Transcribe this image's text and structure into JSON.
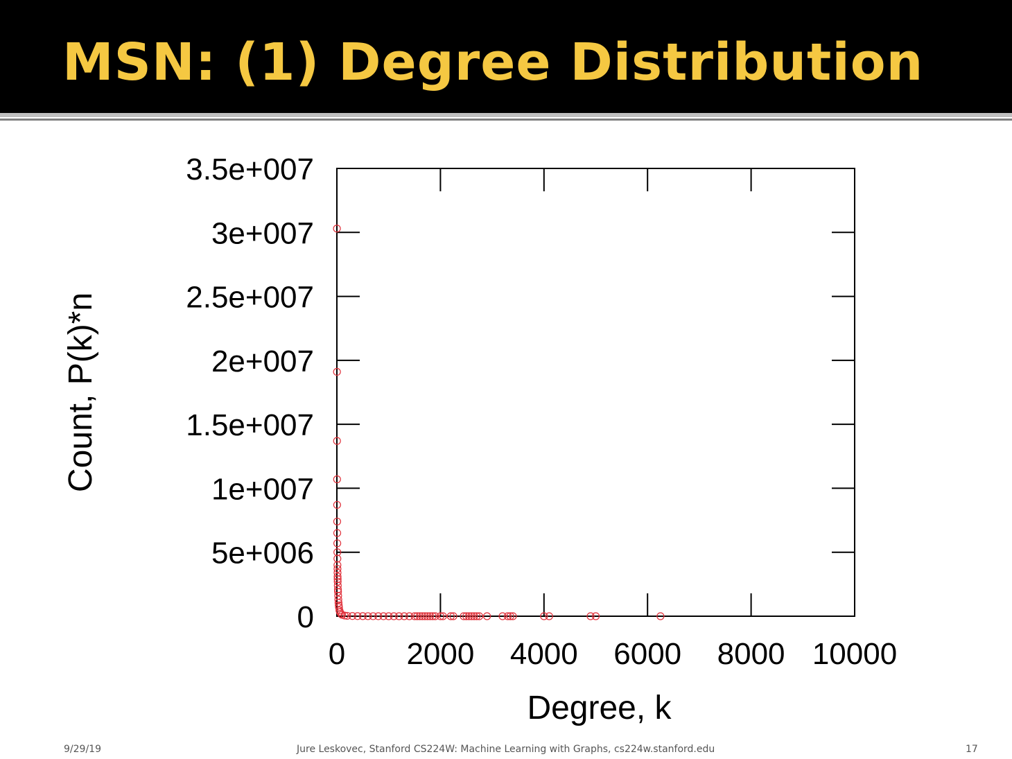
{
  "slide": {
    "title": "MSN: (1) Degree Distribution",
    "footer_date": "9/29/19",
    "footer_center": "Jure Leskovec, Stanford CS224W: Machine Learning with Graphs, cs224w.stanford.edu",
    "page_number": "17"
  },
  "colors": {
    "title_color": "#f5c842",
    "title_bar": "#000000",
    "marker_color": "#e0303a"
  },
  "chart_data": {
    "type": "scatter",
    "title": "",
    "xlabel": "Degree, k",
    "ylabel": "Count, P(k)*n",
    "xlim": [
      0,
      10000
    ],
    "ylim": [
      0,
      35000000
    ],
    "xticks": [
      0,
      2000,
      4000,
      6000,
      8000,
      10000
    ],
    "xtick_labels": [
      "0",
      "2000",
      "4000",
      "6000",
      "8000",
      "10000"
    ],
    "yticks": [
      0,
      5000000,
      10000000,
      15000000,
      20000000,
      25000000,
      30000000,
      35000000
    ],
    "ytick_labels": [
      "0",
      "5e+006",
      "1e+007",
      "1.5e+007",
      "2e+007",
      "2.5e+007",
      "3e+007",
      "3.5e+007"
    ],
    "grid": false,
    "legend": "none",
    "marker": "open-circle",
    "series": [
      {
        "x": [
          1,
          2,
          3,
          4,
          5,
          6,
          7,
          8,
          9,
          10,
          11,
          12,
          13,
          14,
          15,
          16,
          18,
          20,
          22,
          25,
          28,
          32,
          36,
          40,
          50,
          60,
          80,
          100,
          150,
          200,
          300,
          400,
          500,
          600,
          700,
          800,
          900,
          1000,
          1100,
          1200,
          1300,
          1400,
          1500,
          1550,
          1600,
          1650,
          1700,
          1750,
          1800,
          1850,
          1900,
          2000,
          2050,
          2200,
          2250,
          2450,
          2500,
          2550,
          2600,
          2650,
          2700,
          2750,
          2900,
          3200,
          3300,
          3350,
          3400,
          4000,
          4100,
          4900,
          5000,
          6250
        ],
        "y": [
          30300000,
          19100000,
          13700000,
          10700000,
          8700000,
          7400000,
          6500000,
          5700000,
          5000000,
          4500000,
          4000000,
          3700000,
          3400000,
          3100000,
          2900000,
          2700000,
          2400000,
          2100000,
          1900000,
          1600000,
          1300000,
          1050000,
          850000,
          700000,
          450000,
          320000,
          180000,
          110000,
          50000,
          30000,
          15000,
          8000,
          5000,
          3500,
          2500,
          1800,
          1400,
          1100,
          900,
          700,
          550,
          450,
          400,
          350,
          300,
          280,
          250,
          230,
          210,
          190,
          170,
          150,
          140,
          120,
          110,
          90,
          80,
          75,
          70,
          65,
          60,
          55,
          50,
          40,
          35,
          30,
          28,
          20,
          18,
          12,
          10,
          5
        ]
      }
    ]
  }
}
